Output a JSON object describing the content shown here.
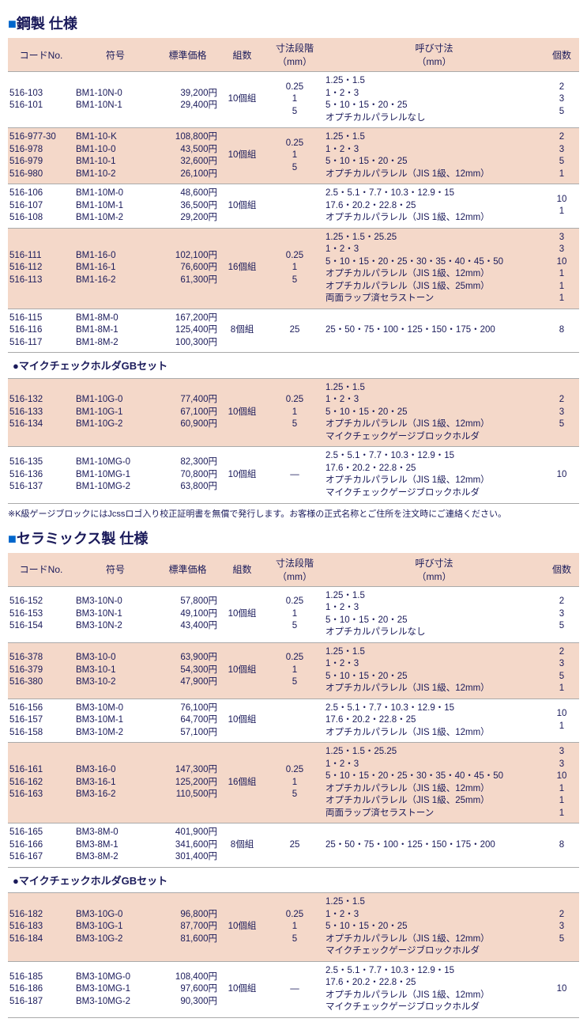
{
  "colors": {
    "header_bg": "#f4d8c9",
    "text": "#1a1a5a",
    "marker": "#0066cc"
  },
  "sections": [
    {
      "title": "鋼製 仕様",
      "headers": {
        "code": "コードNo.",
        "sign": "符号",
        "price": "標準価格",
        "set": "組数",
        "step": "寸法段階",
        "step_unit": "（mm）",
        "dim": "呼び寸法",
        "dim_unit": "（mm）",
        "qty": "個数"
      },
      "groups": [
        {
          "rows": [
            {
              "alt": false,
              "code": [
                "516-103",
                "516-101"
              ],
              "sign": [
                "BM1-10N-0",
                "BM1-10N-1"
              ],
              "price": [
                "39,200円",
                "29,400円"
              ],
              "set": "10個組",
              "step": [
                "0.25",
                "1",
                "5"
              ],
              "dim": [
                "1.25・1.5",
                "1・2・3",
                "5・10・15・20・25",
                "オプチカルパラレルなし"
              ],
              "qty": [
                "2",
                "3",
                "5"
              ]
            },
            {
              "alt": true,
              "code": [
                "516-977-30",
                "516-978",
                "516-979",
                "516-980"
              ],
              "sign": [
                "BM1-10-K",
                "BM1-10-0",
                "BM1-10-1",
                "BM1-10-2"
              ],
              "price": [
                "108,800円",
                "43,500円",
                "32,600円",
                "26,100円"
              ],
              "set": "10個組",
              "step": [
                "0.25",
                "1",
                "5"
              ],
              "dim": [
                "1.25・1.5",
                "1・2・3",
                "5・10・15・20・25",
                "オプチカルパラレル（JIS 1級、12mm）"
              ],
              "qty": [
                "2",
                "3",
                "5",
                "1"
              ]
            },
            {
              "alt": false,
              "code": [
                "516-106",
                "516-107",
                "516-108"
              ],
              "sign": [
                "BM1-10M-0",
                "BM1-10M-1",
                "BM1-10M-2"
              ],
              "price": [
                "48,600円",
                "36,500円",
                "29,200円"
              ],
              "set": "10個組",
              "step": [],
              "dim": [
                "2.5・5.1・7.7・10.3・12.9・15",
                "17.6・20.2・22.8・25",
                "オプチカルパラレル（JIS 1級、12mm）"
              ],
              "qty": [
                "10",
                "1"
              ]
            },
            {
              "alt": true,
              "code": [
                "516-111",
                "516-112",
                "516-113"
              ],
              "sign": [
                "BM1-16-0",
                "BM1-16-1",
                "BM1-16-2"
              ],
              "price": [
                "102,100円",
                "76,600円",
                "61,300円"
              ],
              "set": "16個組",
              "step": [
                "0.25",
                "1",
                "5"
              ],
              "dim": [
                "1.25・1.5・25.25",
                "1・2・3",
                "5・10・15・20・25・30・35・40・45・50",
                "オプチカルパラレル（JIS 1級、12mm）",
                "オプチカルパラレル（JIS 1級、25mm）",
                "両面ラップ済セラストーン"
              ],
              "qty": [
                "3",
                "3",
                "10",
                "1",
                "1",
                "1"
              ]
            },
            {
              "alt": false,
              "code": [
                "516-115",
                "516-116",
                "516-117"
              ],
              "sign": [
                "BM1-8M-0",
                "BM1-8M-1",
                "BM1-8M-2"
              ],
              "price": [
                "167,200円",
                "125,400円",
                "100,300円"
              ],
              "set": "8個組",
              "step": [
                "25"
              ],
              "dim": [
                "25・50・75・100・125・150・175・200"
              ],
              "qty": [
                "8"
              ]
            }
          ]
        },
        {
          "subtitle": "●マイクチェックホルダGBセット",
          "rows": [
            {
              "alt": true,
              "code": [
                "516-132",
                "516-133",
                "516-134"
              ],
              "sign": [
                "BM1-10G-0",
                "BM1-10G-1",
                "BM1-10G-2"
              ],
              "price": [
                "77,400円",
                "67,100円",
                "60,900円"
              ],
              "set": "10個組",
              "step": [
                "0.25",
                "1",
                "5"
              ],
              "dim": [
                "1.25・1.5",
                "1・2・3",
                "5・10・15・20・25",
                "オプチカルパラレル（JIS 1級、12mm）",
                "マイクチェックゲージブロックホルダ"
              ],
              "qty": [
                "2",
                "3",
                "5"
              ]
            },
            {
              "alt": false,
              "code": [
                "516-135",
                "516-136",
                "516-137"
              ],
              "sign": [
                "BM1-10MG-0",
                "BM1-10MG-1",
                "BM1-10MG-2"
              ],
              "price": [
                "82,300円",
                "70,800円",
                "63,800円"
              ],
              "set": "10個組",
              "step": [
                "—"
              ],
              "dim": [
                "2.5・5.1・7.7・10.3・12.9・15",
                "17.6・20.2・22.8・25",
                "オプチカルパラレル（JIS 1級、12mm）",
                "マイクチェックゲージブロックホルダ"
              ],
              "qty": [
                "10"
              ]
            }
          ]
        }
      ],
      "footnote": "※K級ゲージブロックにはJcssロゴ入り校正証明書を無償で発行します。お客様の正式名称とご住所を注文時にご連絡ください。"
    },
    {
      "title": "セラミックス製 仕様",
      "headers": {
        "code": "コードNo.",
        "sign": "符号",
        "price": "標準価格",
        "set": "組数",
        "step": "寸法段階",
        "step_unit": "（mm）",
        "dim": "呼び寸法",
        "dim_unit": "（mm）",
        "qty": "個数"
      },
      "groups": [
        {
          "rows": [
            {
              "alt": false,
              "code": [
                "516-152",
                "516-153",
                "516-154"
              ],
              "sign": [
                "BM3-10N-0",
                "BM3-10N-1",
                "BM3-10N-2"
              ],
              "price": [
                "57,800円",
                "49,100円",
                "43,400円"
              ],
              "set": "10個組",
              "step": [
                "0.25",
                "1",
                "5"
              ],
              "dim": [
                "1.25・1.5",
                "1・2・3",
                "5・10・15・20・25",
                "オプチカルパラレルなし"
              ],
              "qty": [
                "2",
                "3",
                "5"
              ]
            },
            {
              "alt": true,
              "code": [
                "516-378",
                "516-379",
                "516-380"
              ],
              "sign": [
                "BM3-10-0",
                "BM3-10-1",
                "BM3-10-2"
              ],
              "price": [
                "63,900円",
                "54,300円",
                "47,900円"
              ],
              "set": "10個組",
              "step": [
                "0.25",
                "1",
                "5"
              ],
              "dim": [
                "1.25・1.5",
                "1・2・3",
                "5・10・15・20・25",
                "オプチカルパラレル（JIS 1級、12mm）"
              ],
              "qty": [
                "2",
                "3",
                "5",
                "1"
              ]
            },
            {
              "alt": false,
              "code": [
                "516-156",
                "516-157",
                "516-158"
              ],
              "sign": [
                "BM3-10M-0",
                "BM3-10M-1",
                "BM3-10M-2"
              ],
              "price": [
                "76,100円",
                "64,700円",
                "57,100円"
              ],
              "set": "10個組",
              "step": [],
              "dim": [
                "2.5・5.1・7.7・10.3・12.9・15",
                "17.6・20.2・22.8・25",
                "オプチカルパラレル（JIS 1級、12mm）"
              ],
              "qty": [
                "10",
                "1"
              ]
            },
            {
              "alt": true,
              "code": [
                "516-161",
                "516-162",
                "516-163"
              ],
              "sign": [
                "BM3-16-0",
                "BM3-16-1",
                "BM3-16-2"
              ],
              "price": [
                "147,300円",
                "125,200円",
                "110,500円"
              ],
              "set": "16個組",
              "step": [
                "0.25",
                "1",
                "5"
              ],
              "dim": [
                "1.25・1.5・25.25",
                "1・2・3",
                "5・10・15・20・25・30・35・40・45・50",
                "オプチカルパラレル（JIS 1級、12mm）",
                "オプチカルパラレル（JIS 1級、25mm）",
                "両面ラップ済セラストーン"
              ],
              "qty": [
                "3",
                "3",
                "10",
                "1",
                "1",
                "1"
              ]
            },
            {
              "alt": false,
              "code": [
                "516-165",
                "516-166",
                "516-167"
              ],
              "sign": [
                "BM3-8M-0",
                "BM3-8M-1",
                "BM3-8M-2"
              ],
              "price": [
                "401,900円",
                "341,600円",
                "301,400円"
              ],
              "set": "8個組",
              "step": [
                "25"
              ],
              "dim": [
                "25・50・75・100・125・150・175・200"
              ],
              "qty": [
                "8"
              ]
            }
          ]
        },
        {
          "subtitle": "●マイクチェックホルダGBセット",
          "rows": [
            {
              "alt": true,
              "code": [
                "516-182",
                "516-183",
                "516-184"
              ],
              "sign": [
                "BM3-10G-0",
                "BM3-10G-1",
                "BM3-10G-2"
              ],
              "price": [
                "96,800円",
                "87,700円",
                "81,600円"
              ],
              "set": "10個組",
              "step": [
                "0.25",
                "1",
                "5"
              ],
              "dim": [
                "1.25・1.5",
                "1・2・3",
                "5・10・15・20・25",
                "オプチカルパラレル（JIS 1級、12mm）",
                "マイクチェックゲージブロックホルダ"
              ],
              "qty": [
                "2",
                "3",
                "5"
              ]
            },
            {
              "alt": false,
              "code": [
                "516-185",
                "516-186",
                "516-187"
              ],
              "sign": [
                "BM3-10MG-0",
                "BM3-10MG-1",
                "BM3-10MG-2"
              ],
              "price": [
                "108,400円",
                "97,600円",
                "90,300円"
              ],
              "set": "10個組",
              "step": [
                "—"
              ],
              "dim": [
                "2.5・5.1・7.7・10.3・12.9・15",
                "17.6・20.2・22.8・25",
                "オプチカルパラレル（JIS 1級、12mm）",
                "マイクチェックゲージブロックホルダ"
              ],
              "qty": [
                "10"
              ]
            }
          ]
        }
      ]
    }
  ]
}
